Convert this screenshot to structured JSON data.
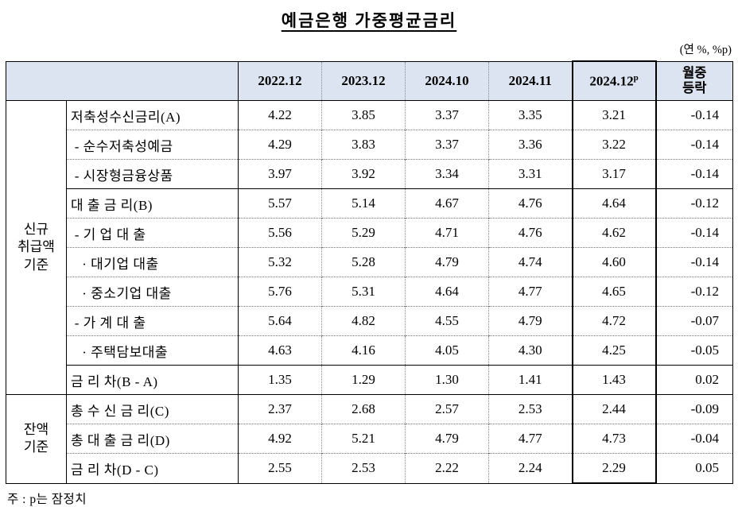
{
  "title": "예금은행 가중평균금리",
  "unit_note": "(연 %, %p)",
  "footnote": "주 : p는 잠정치",
  "table": {
    "type": "table",
    "columns": [
      {
        "label": "2022.12"
      },
      {
        "label": "2023.12"
      },
      {
        "label": "2024.10"
      },
      {
        "label": "2024.11"
      },
      {
        "label": "2024.12",
        "sup": "p",
        "highlight": true
      },
      {
        "label": "월중\n등락",
        "multiline": true
      }
    ],
    "groups": [
      {
        "label": "신규\n취급액\n기준",
        "rows": [
          {
            "label": "저축성수신금리(A)",
            "sep": "none",
            "values": [
              "4.22",
              "3.85",
              "3.37",
              "3.35",
              "3.21",
              "-0.14"
            ]
          },
          {
            "label": " - 순수저축성예금",
            "sep": "dotted",
            "values": [
              "4.29",
              "3.83",
              "3.37",
              "3.36",
              "3.22",
              "-0.14"
            ]
          },
          {
            "label": " - 시장형금융상품",
            "sep": "dotted",
            "values": [
              "3.97",
              "3.92",
              "3.34",
              "3.31",
              "3.17",
              "-0.14"
            ]
          },
          {
            "label": "대 출 금 리(B)",
            "sep": "solid",
            "values": [
              "5.57",
              "5.14",
              "4.67",
              "4.76",
              "4.64",
              "-0.12"
            ]
          },
          {
            "label": " - 기 업 대 출",
            "sep": "dotted",
            "values": [
              "5.56",
              "5.29",
              "4.71",
              "4.76",
              "4.62",
              "-0.14"
            ]
          },
          {
            "label": "   · 대기업 대출",
            "sep": "dotted",
            "values": [
              "5.32",
              "5.28",
              "4.79",
              "4.74",
              "4.60",
              "-0.14"
            ]
          },
          {
            "label": "   · 중소기업 대출",
            "sep": "dotted",
            "values": [
              "5.76",
              "5.31",
              "4.64",
              "4.77",
              "4.65",
              "-0.12"
            ]
          },
          {
            "label": " - 가 계 대 출",
            "sep": "dotted",
            "values": [
              "5.64",
              "4.82",
              "4.55",
              "4.79",
              "4.72",
              "-0.07"
            ]
          },
          {
            "label": "   · 주택담보대출",
            "sep": "dotted",
            "values": [
              "4.63",
              "4.16",
              "4.05",
              "4.30",
              "4.25",
              "-0.05"
            ]
          },
          {
            "label": "금 리 차(B - A)",
            "sep": "solid",
            "values": [
              "1.35",
              "1.29",
              "1.30",
              "1.41",
              "1.43",
              "0.02"
            ]
          }
        ]
      },
      {
        "label": "잔액\n기준",
        "rows": [
          {
            "label": "총 수 신 금 리(C)",
            "sep": "solid",
            "values": [
              "2.37",
              "2.68",
              "2.57",
              "2.53",
              "2.44",
              "-0.09"
            ]
          },
          {
            "label": "총 대 출 금 리(D)",
            "sep": "dotted",
            "values": [
              "4.92",
              "5.21",
              "4.79",
              "4.77",
              "4.73",
              "-0.04"
            ]
          },
          {
            "label": "금 리 차(D - C)",
            "sep": "dotted",
            "values": [
              "2.55",
              "2.53",
              "2.22",
              "2.24",
              "2.29",
              "0.05"
            ]
          }
        ]
      }
    ]
  }
}
